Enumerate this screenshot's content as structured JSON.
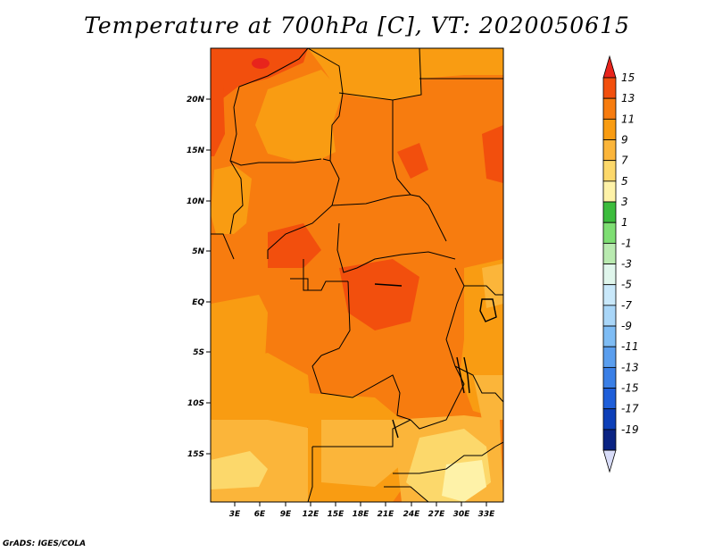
{
  "title": "Temperature at 700hPa [C], VT: 2020050615",
  "credit": "GrADS: IGES/COLA",
  "map": {
    "lat_labels": [
      "20N",
      "15N",
      "10N",
      "5N",
      "EQ",
      "5S",
      "10S",
      "15S"
    ],
    "lon_labels": [
      "3E",
      "6E",
      "9E",
      "12E",
      "15E",
      "18E",
      "21E",
      "24E",
      "27E",
      "30E",
      "33E"
    ],
    "region": "Central Africa"
  },
  "colorbar": {
    "labels": [
      "15",
      "13",
      "11",
      "9",
      "7",
      "5",
      "3",
      "1",
      "-1",
      "-3",
      "-5",
      "-7",
      "-9",
      "-11",
      "-13",
      "-15",
      "-17",
      "-19"
    ],
    "colors": [
      "#e8241c",
      "#f24f0d",
      "#f77c0f",
      "#f99c12",
      "#fbb53a",
      "#fcd86b",
      "#fef2a8",
      "#3cbc3d",
      "#7ede73",
      "#b9eab0",
      "#e0f6ec",
      "#c9e8fa",
      "#a9d6f8",
      "#7ebcf4",
      "#5a9eee",
      "#3a7fe6",
      "#1e5ed9",
      "#0d3fb8",
      "#0a2383",
      "#0a1560"
    ],
    "over_color": "#e8241c",
    "under_color": "#d8dcf8"
  }
}
